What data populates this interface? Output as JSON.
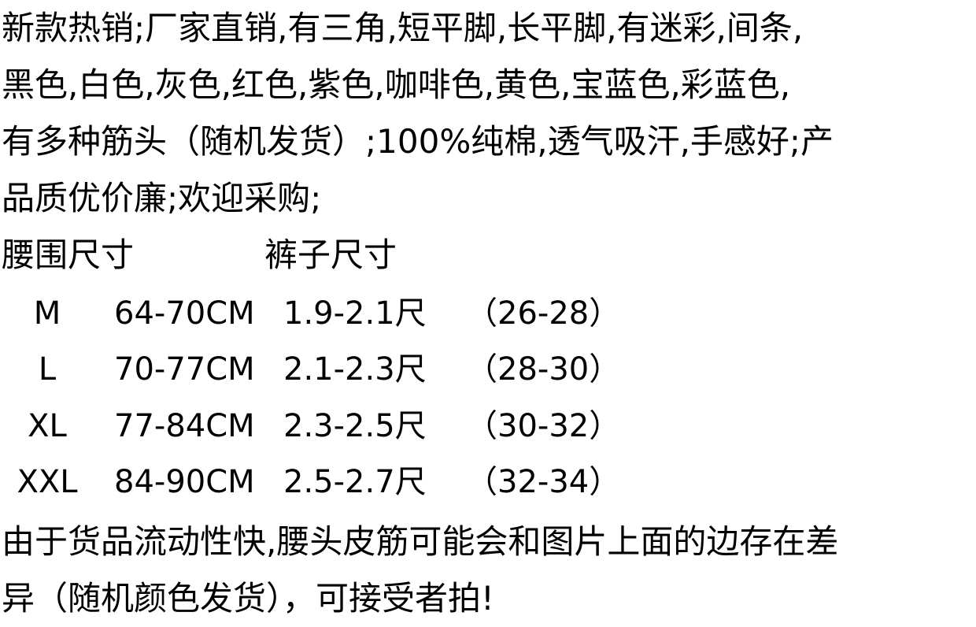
{
  "intro": [
    "新款热销;厂家直销,有三角,短平脚,长平脚,有迷彩,间条,",
    "黑色,白色,灰色,红色,紫色,咖啡色,黄色,宝蓝色,彩蓝色,",
    "有多种筋头（随机发货）;100%纯棉,透气吸汗,手感好;产",
    "品质优价廉;欢迎采购;"
  ],
  "size_table": {
    "header_waist": "腰围尺寸",
    "header_pants": "裤子尺寸",
    "rows": [
      {
        "size": "M",
        "waist": "64-70CM",
        "chi": "1.9-2.1尺",
        "range": "（26-28）"
      },
      {
        "size": "L",
        "waist": "70-77CM",
        "chi": "2.1-2.3尺",
        "range": "（28-30）"
      },
      {
        "size": "XL",
        "waist": "77-84CM",
        "chi": "2.3-2.5尺",
        "range": "（30-32）"
      },
      {
        "size": "XXL",
        "waist": "84-90CM",
        "chi": "2.5-2.7尺",
        "range": "（32-34）"
      }
    ]
  },
  "note": [
    "由于货品流动性快,腰头皮筋可能会和图片上面的边存在差",
    "异（随机颜色发货），可接受者拍!"
  ]
}
